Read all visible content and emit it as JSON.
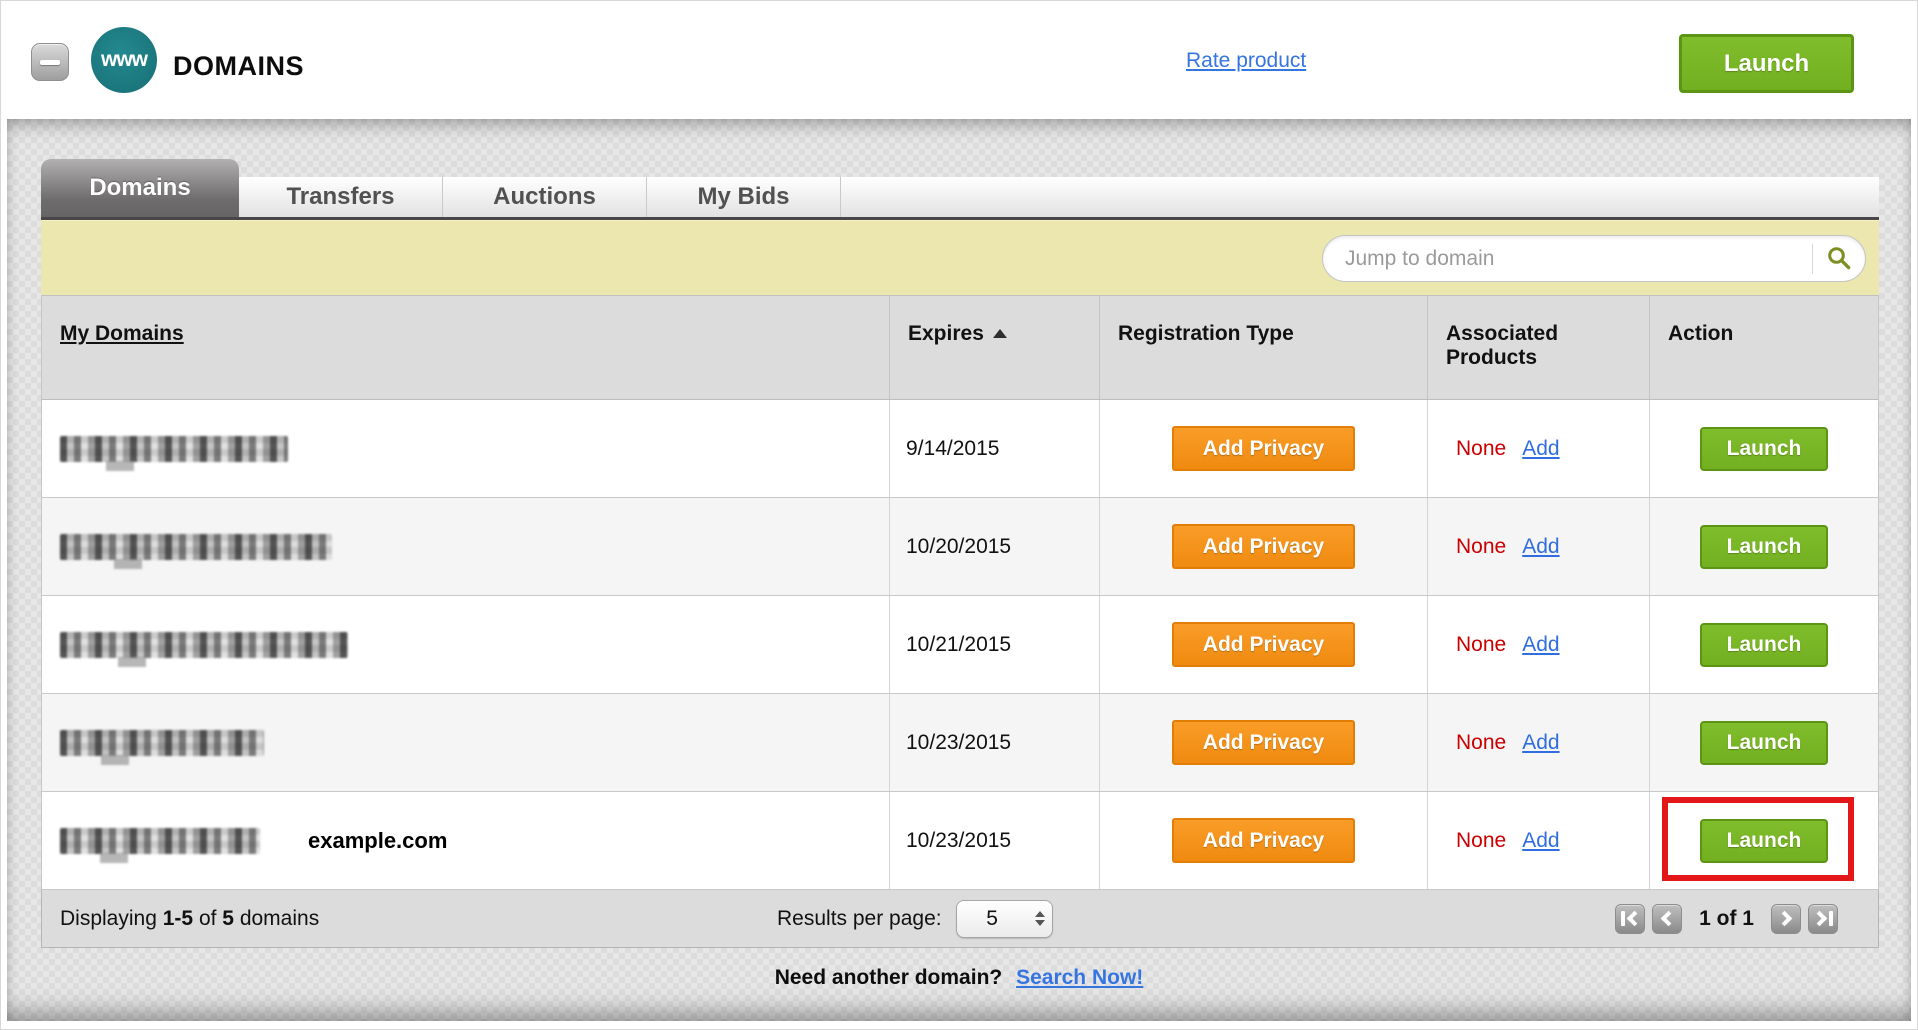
{
  "app": {
    "logo_text": "www",
    "title": "DOMAINS"
  },
  "header": {
    "rate_product_link": "Rate product",
    "launch_button": "Launch"
  },
  "tabs": [
    {
      "label": "Domains",
      "active": true
    },
    {
      "label": "Transfers",
      "active": false
    },
    {
      "label": "Auctions",
      "active": false
    },
    {
      "label": "My Bids",
      "active": false
    }
  ],
  "search": {
    "placeholder": "Jump to domain"
  },
  "table": {
    "columns": [
      {
        "label": "My Domains"
      },
      {
        "label": "Expires"
      },
      {
        "label": "Registration Type"
      },
      {
        "label": "Associated Products"
      },
      {
        "label": "Action"
      }
    ],
    "sort": {
      "column": "Expires",
      "direction": "ascending"
    },
    "rows": [
      {
        "domain_redacted": true,
        "annotation": "",
        "expires": "9/14/2015",
        "privacy_button": "Add Privacy",
        "associated_products": "None",
        "add_link": "Add",
        "launch_button": "Launch",
        "highlighted": false
      },
      {
        "domain_redacted": true,
        "annotation": "",
        "expires": "10/20/2015",
        "privacy_button": "Add Privacy",
        "associated_products": "None",
        "add_link": "Add",
        "launch_button": "Launch",
        "highlighted": false
      },
      {
        "domain_redacted": true,
        "annotation": "",
        "expires": "10/21/2015",
        "privacy_button": "Add Privacy",
        "associated_products": "None",
        "add_link": "Add",
        "launch_button": "Launch",
        "highlighted": false
      },
      {
        "domain_redacted": true,
        "annotation": "",
        "expires": "10/23/2015",
        "privacy_button": "Add Privacy",
        "associated_products": "None",
        "add_link": "Add",
        "launch_button": "Launch",
        "highlighted": false
      },
      {
        "domain_redacted": true,
        "annotation": "example.com",
        "expires": "10/23/2015",
        "privacy_button": "Add Privacy",
        "associated_products": "None",
        "add_link": "Add",
        "launch_button": "Launch",
        "highlighted": true
      }
    ]
  },
  "footer": {
    "displaying_word": "Displaying",
    "range": "1-5",
    "of_word": "of",
    "total": "5",
    "domains_word": "domains",
    "results_per_page_label": "Results per page:",
    "results_per_page_value": "5",
    "page_indicator": "1 of 1"
  },
  "bottom_prompt": {
    "text": "Need another domain?",
    "link": "Search Now!"
  },
  "colors": {
    "accent_green": "#72b021",
    "accent_orange": "#f7941e",
    "highlight_red": "#e31717",
    "link_blue": "#3575e2",
    "alert_red": "#cc0000",
    "brand_teal": "#1b7b80",
    "toolbar_yellow": "#ebe7ae"
  }
}
